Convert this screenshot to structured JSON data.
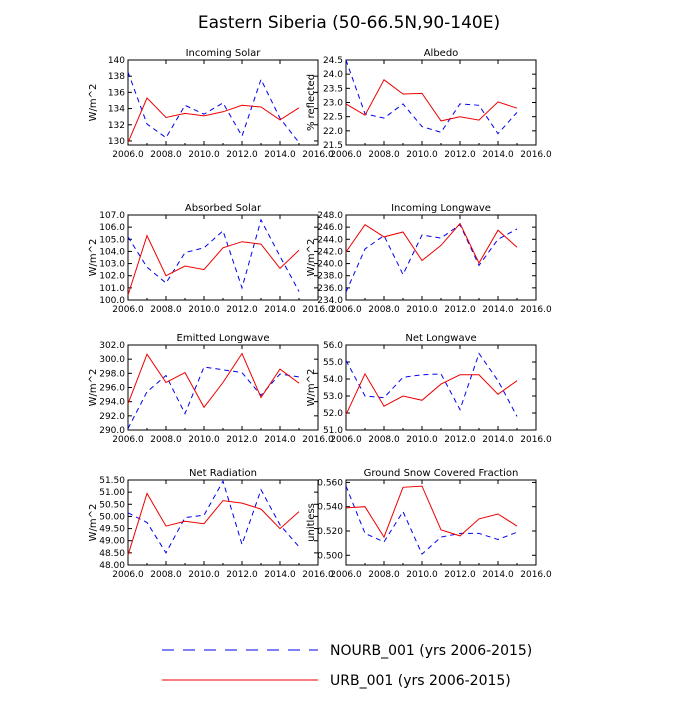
{
  "figure": {
    "title": "Eastern Siberia (50-66.5N,90-140E)"
  },
  "legend": [
    {
      "name": "NOURB_001 (yrs 2006-2015)",
      "color": "#0000ee",
      "dash": true
    },
    {
      "name": "URB_001 (yrs 2006-2015)",
      "color": "#ee0000",
      "dash": false
    }
  ],
  "chart_data": [
    {
      "type": "line",
      "title": "Incoming Solar",
      "ylabel": "W/m^2",
      "xlim": [
        2006,
        2016
      ],
      "ylim": [
        129.5,
        140
      ],
      "xticks": [
        2006,
        2008,
        2010,
        2012,
        2014,
        2016
      ],
      "xticklabels": [
        "2006.0",
        "2008.0",
        "2010.0",
        "2012.0",
        "2014.0",
        "2016.0"
      ],
      "yticks": [
        130,
        132,
        134,
        136,
        138,
        140
      ],
      "yticklabels": [
        "130",
        "132",
        "134",
        "136",
        "138",
        "140"
      ],
      "x": [
        2006,
        2007,
        2008,
        2009,
        2010,
        2011,
        2012,
        2013,
        2014,
        2015
      ],
      "series": [
        {
          "name": "NOURB_001",
          "values": [
            138.5,
            132.1,
            130.4,
            134.4,
            133.3,
            134.7,
            130.6,
            137.6,
            132.8,
            129.8
          ]
        },
        {
          "name": "URB_001",
          "values": [
            129.8,
            135.3,
            132.9,
            133.4,
            133.1,
            133.6,
            134.4,
            134.2,
            132.6,
            134.1
          ]
        }
      ]
    },
    {
      "type": "line",
      "title": "Albedo",
      "ylabel": "% reflected",
      "xlim": [
        2006,
        2016
      ],
      "ylim": [
        21.5,
        24.5
      ],
      "xticks": [
        2006,
        2008,
        2010,
        2012,
        2014,
        2016
      ],
      "xticklabels": [
        "2006.0",
        "2008.0",
        "2010.0",
        "2012.0",
        "2014.0",
        "2016.0"
      ],
      "yticks": [
        21.5,
        22,
        22.5,
        23,
        23.5,
        24,
        24.5
      ],
      "yticklabels": [
        "21.5",
        "22.0",
        "22.5",
        "23.0",
        "23.5",
        "24.0",
        "24.5"
      ],
      "x": [
        2006,
        2007,
        2008,
        2009,
        2010,
        2011,
        2012,
        2013,
        2014,
        2015
      ],
      "series": [
        {
          "name": "NOURB_001",
          "values": [
            24.5,
            22.6,
            22.45,
            22.95,
            22.15,
            21.95,
            22.95,
            22.9,
            21.9,
            22.65
          ]
        },
        {
          "name": "URB_001",
          "values": [
            22.95,
            22.55,
            23.8,
            23.3,
            23.32,
            22.35,
            22.5,
            22.38,
            23.02,
            22.8
          ]
        }
      ]
    },
    {
      "type": "line",
      "title": "Absorbed Solar",
      "ylabel": "W/m^2",
      "xlim": [
        2006,
        2016
      ],
      "ylim": [
        100,
        107
      ],
      "xticks": [
        2006,
        2008,
        2010,
        2012,
        2014,
        2016
      ],
      "xticklabels": [
        "2006.0",
        "2008.0",
        "2010.0",
        "2012.0",
        "2014.0",
        "2016.0"
      ],
      "yticks": [
        100,
        101,
        102,
        103,
        104,
        105,
        106,
        107
      ],
      "yticklabels": [
        "100.0",
        "101.0",
        "102.0",
        "103.0",
        "104.0",
        "105.0",
        "106.0",
        "107.0"
      ],
      "x": [
        2006,
        2007,
        2008,
        2009,
        2010,
        2011,
        2012,
        2013,
        2014,
        2015
      ],
      "series": [
        {
          "name": "NOURB_001",
          "values": [
            105.2,
            102.7,
            101.4,
            103.9,
            104.3,
            105.7,
            101.0,
            106.6,
            103.6,
            100.7
          ]
        },
        {
          "name": "URB_001",
          "values": [
            100.4,
            105.3,
            102.0,
            102.8,
            102.5,
            104.3,
            104.8,
            104.6,
            102.6,
            104.1
          ]
        }
      ]
    },
    {
      "type": "line",
      "title": "Incoming Longwave",
      "ylabel": "W/m^2",
      "xlim": [
        2006,
        2016
      ],
      "ylim": [
        234,
        248
      ],
      "xticks": [
        2006,
        2008,
        2010,
        2012,
        2014,
        2016
      ],
      "xticklabels": [
        "2006.0",
        "2008.0",
        "2010.0",
        "2012.0",
        "2014.0",
        "2016.0"
      ],
      "yticks": [
        234,
        236,
        238,
        240,
        242,
        244,
        246,
        248
      ],
      "yticklabels": [
        "234.0",
        "236.0",
        "238.0",
        "240.0",
        "242.0",
        "244.0",
        "246.0",
        "248.0"
      ],
      "x": [
        2006,
        2007,
        2008,
        2009,
        2010,
        2011,
        2012,
        2013,
        2014,
        2015
      ],
      "series": [
        {
          "name": "NOURB_001",
          "values": [
            235.3,
            242.4,
            244.6,
            238.2,
            244.7,
            244.2,
            246.4,
            239.7,
            244.0,
            245.7
          ]
        },
        {
          "name": "URB_001",
          "values": [
            241.9,
            246.4,
            244.4,
            245.2,
            240.5,
            243.0,
            246.6,
            240.1,
            245.5,
            242.7
          ]
        }
      ]
    },
    {
      "type": "line",
      "title": "Emitted Longwave",
      "ylabel": "W/m^2",
      "xlim": [
        2006,
        2016
      ],
      "ylim": [
        290,
        302
      ],
      "xticks": [
        2006,
        2008,
        2010,
        2012,
        2014,
        2016
      ],
      "xticklabels": [
        "2006.0",
        "2008.0",
        "2010.0",
        "2012.0",
        "2014.0",
        "2016.0"
      ],
      "yticks": [
        290,
        292,
        294,
        296,
        298,
        300,
        302
      ],
      "yticklabels": [
        "290.0",
        "292.0",
        "294.0",
        "296.0",
        "298.0",
        "300.0",
        "302.0"
      ],
      "x": [
        2006,
        2007,
        2008,
        2009,
        2010,
        2011,
        2012,
        2013,
        2014,
        2015
      ],
      "series": [
        {
          "name": "NOURB_001",
          "values": [
            290.2,
            295.4,
            297.7,
            292.3,
            298.9,
            298.5,
            298.1,
            294.9,
            297.9,
            297.5
          ]
        },
        {
          "name": "URB_001",
          "values": [
            293.7,
            300.7,
            296.7,
            298.1,
            293.2,
            296.7,
            300.8,
            294.6,
            298.6,
            296.6
          ]
        }
      ]
    },
    {
      "type": "line",
      "title": "Net Longwave",
      "ylabel": "W/m^2",
      "xlim": [
        2006,
        2016
      ],
      "ylim": [
        51,
        56
      ],
      "xticks": [
        2006,
        2008,
        2010,
        2012,
        2014,
        2016
      ],
      "xticklabels": [
        "2006.0",
        "2008.0",
        "2010.0",
        "2012.0",
        "2014.0",
        "2016.0"
      ],
      "yticks": [
        51,
        52,
        53,
        54,
        55,
        56
      ],
      "yticklabels": [
        "51.0",
        "52.0",
        "53.0",
        "54.0",
        "55.0",
        "56.0"
      ],
      "x": [
        2006,
        2007,
        2008,
        2009,
        2010,
        2011,
        2012,
        2013,
        2014,
        2015
      ],
      "series": [
        {
          "name": "NOURB_001",
          "values": [
            55.1,
            53.0,
            52.9,
            54.1,
            54.25,
            54.3,
            52.2,
            55.5,
            53.9,
            51.8
          ]
        },
        {
          "name": "URB_001",
          "values": [
            51.9,
            54.3,
            52.4,
            53.0,
            52.75,
            53.7,
            54.25,
            54.25,
            53.1,
            53.9
          ]
        }
      ]
    },
    {
      "type": "line",
      "title": "Net Radiation",
      "ylabel": "W/m^2",
      "xlim": [
        2006,
        2016
      ],
      "ylim": [
        48,
        51.5
      ],
      "xticks": [
        2006,
        2008,
        2010,
        2012,
        2014,
        2016
      ],
      "xticklabels": [
        "2006.0",
        "2008.0",
        "2010.0",
        "2012.0",
        "2014.0",
        "2016.0"
      ],
      "yticks": [
        48,
        48.5,
        49,
        49.5,
        50,
        50.5,
        51,
        51.5
      ],
      "yticklabels": [
        "48.00",
        "48.50",
        "49.00",
        "49.50",
        "50.00",
        "50.50",
        "51.00",
        "51.50"
      ],
      "x": [
        2006,
        2007,
        2008,
        2009,
        2010,
        2011,
        2012,
        2013,
        2014,
        2015
      ],
      "series": [
        {
          "name": "NOURB_001",
          "values": [
            50.15,
            49.75,
            48.5,
            49.95,
            50.05,
            51.45,
            48.85,
            51.1,
            49.65,
            48.75
          ]
        },
        {
          "name": "URB_001",
          "values": [
            48.4,
            50.95,
            49.6,
            49.8,
            49.7,
            50.65,
            50.55,
            50.3,
            49.5,
            50.2
          ]
        }
      ]
    },
    {
      "type": "line",
      "title": "Ground Snow Covered Fraction",
      "ylabel": "unitless",
      "xlim": [
        2006,
        2016
      ],
      "ylim": [
        0.492,
        0.562
      ],
      "xticks": [
        2006,
        2008,
        2010,
        2012,
        2014,
        2016
      ],
      "xticklabels": [
        "2006.0",
        "2008.0",
        "2010.0",
        "2012.0",
        "2014.0",
        "2016.0"
      ],
      "yticks": [
        0.5,
        0.52,
        0.54,
        0.56
      ],
      "yticklabels": [
        "0.500",
        "0.520",
        "0.540",
        "0.560"
      ],
      "x": [
        2006,
        2007,
        2008,
        2009,
        2010,
        2011,
        2012,
        2013,
        2014,
        2015
      ],
      "series": [
        {
          "name": "NOURB_001",
          "values": [
            0.557,
            0.518,
            0.511,
            0.536,
            0.501,
            0.515,
            0.518,
            0.518,
            0.513,
            0.519
          ]
        },
        {
          "name": "URB_001",
          "values": [
            0.539,
            0.54,
            0.515,
            0.556,
            0.557,
            0.521,
            0.516,
            0.53,
            0.534,
            0.524
          ]
        }
      ]
    }
  ]
}
